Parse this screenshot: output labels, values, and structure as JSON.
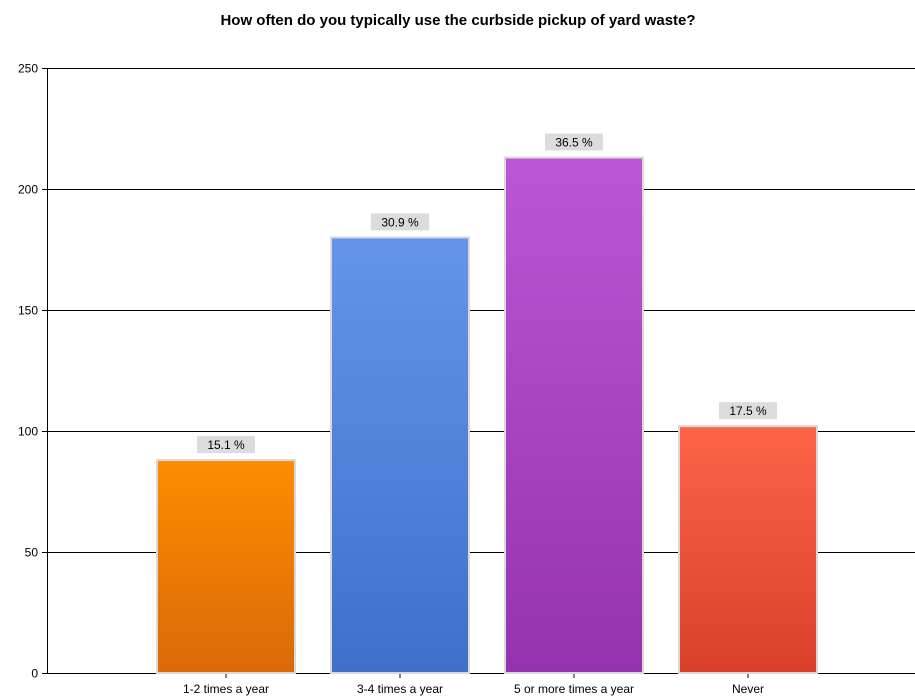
{
  "chart_data": {
    "type": "bar",
    "title": "How often do you typically use the curbside pickup of yard waste?",
    "xlabel": "",
    "ylabel": "",
    "ylim": [
      0,
      250
    ],
    "yticks": [
      0,
      50,
      100,
      150,
      200,
      250
    ],
    "grid": true,
    "legend": "none",
    "categories": [
      "1-2 times a year",
      "3-4 times a year",
      "5 or more times a year",
      "Never"
    ],
    "values": [
      88,
      180,
      213,
      102
    ],
    "data_labels": [
      "15.1 %",
      "30.9 %",
      "36.5 %",
      "17.5 %"
    ],
    "colors": [
      {
        "top": "#ff8c00",
        "bottom": "#d96a08"
      },
      {
        "top": "#6595ea",
        "bottom": "#3f70c8"
      },
      {
        "top": "#bb56d6",
        "bottom": "#9532ad"
      },
      {
        "top": "#fd6448",
        "bottom": "#d8402a"
      }
    ]
  }
}
